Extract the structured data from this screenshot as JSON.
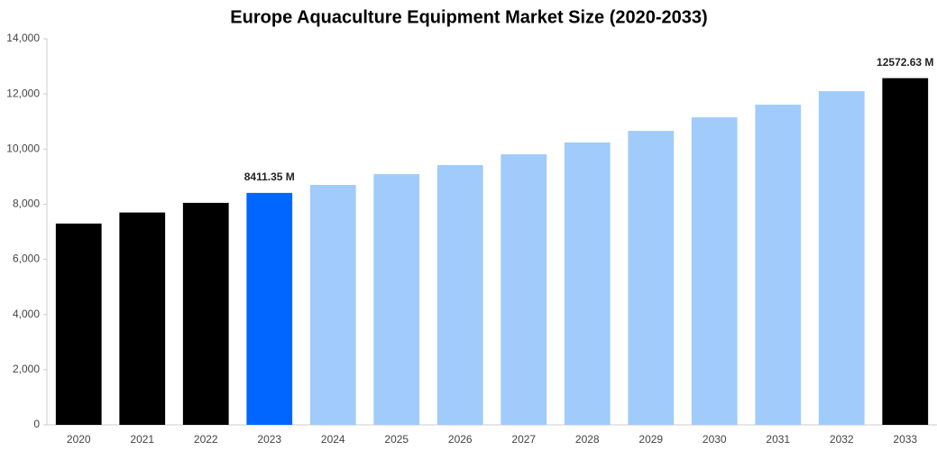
{
  "chart_data": {
    "type": "bar",
    "title": "Europe Aquaculture Equipment Market Size (2020-2033)",
    "categories": [
      "2020",
      "2021",
      "2022",
      "2023",
      "2024",
      "2025",
      "2026",
      "2027",
      "2028",
      "2029",
      "2030",
      "2031",
      "2032",
      "2033"
    ],
    "values": [
      7300,
      7700,
      8050,
      8411.35,
      8700,
      9090,
      9420,
      9810,
      10240,
      10660,
      11150,
      11610,
      12100,
      12572.63
    ],
    "value_labels": [
      null,
      null,
      null,
      "8411.35 M",
      null,
      null,
      null,
      null,
      null,
      null,
      null,
      null,
      null,
      "12572.63 M"
    ],
    "colors": [
      "#000000",
      "#000000",
      "#000000",
      "#0066ff",
      "#a0cbfb",
      "#a0cbfb",
      "#a0cbfb",
      "#a0cbfb",
      "#a0cbfb",
      "#a0cbfb",
      "#a0cbfb",
      "#a0cbfb",
      "#a0cbfb",
      "#000000"
    ],
    "ylim": [
      0,
      14000
    ],
    "yticks": [
      0,
      {
        "value": 2000,
        "label": "2,000"
      },
      {
        "value": 4000,
        "label": "4,000"
      },
      {
        "value": 6000,
        "label": "6,000"
      },
      {
        "value": 8000,
        "label": "8,000"
      },
      {
        "value": 10000,
        "label": "10,000"
      },
      {
        "value": 12000,
        "label": "12,000"
      },
      {
        "value": 14000,
        "label": "14,000"
      }
    ],
    "grid": false
  }
}
